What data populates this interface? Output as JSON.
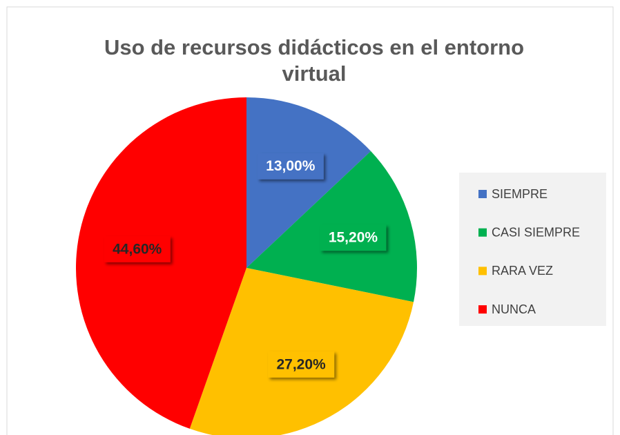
{
  "chart_data": {
    "type": "pie",
    "title": "Uso de recursos didácticos en el entorno virtual",
    "categories": [
      "SIEMPRE",
      "CASI SIEMPRE",
      "RARA VEZ",
      "NUNCA"
    ],
    "values": [
      13.0,
      15.2,
      27.2,
      44.6
    ],
    "value_labels": [
      "13,00%",
      "15,20%",
      "27,20%",
      "44,60%"
    ],
    "colors": [
      "#4472c4",
      "#00b050",
      "#ffc000",
      "#ff0000"
    ],
    "legend": "right"
  }
}
